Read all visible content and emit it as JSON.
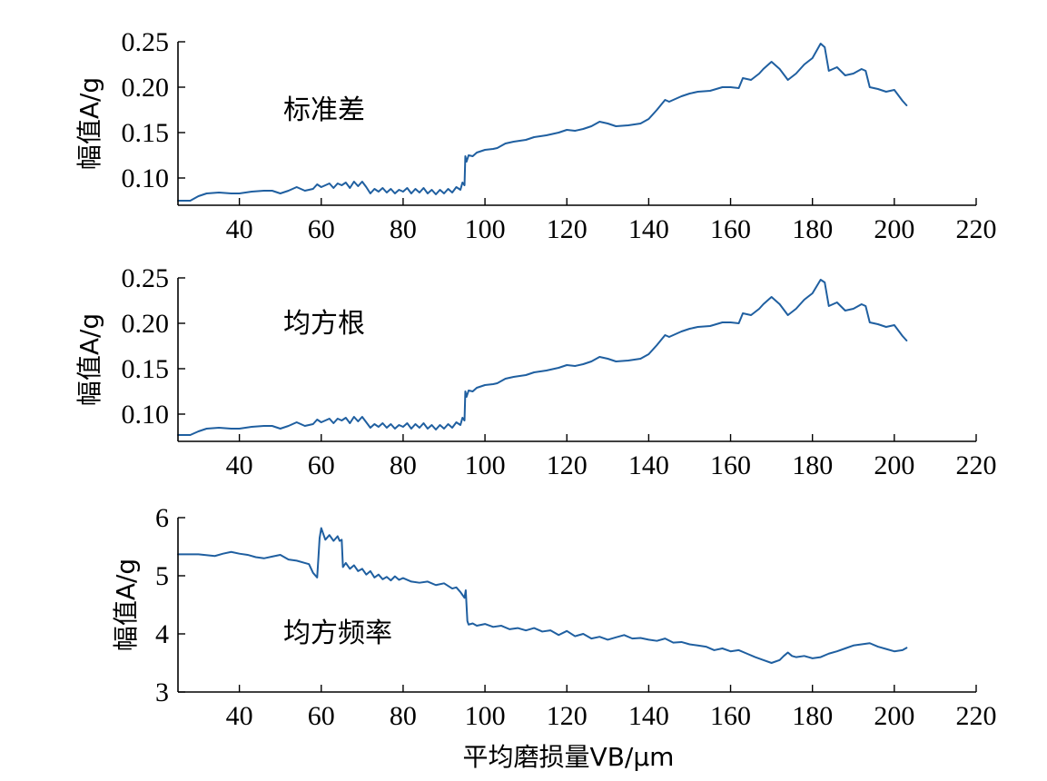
{
  "style": {
    "line_color": "#1f5fa0"
  },
  "chart_data": [
    {
      "type": "line",
      "title": "",
      "ylabel": "幅值A/g",
      "xlabel": "",
      "annotation": "标准差",
      "xlim": [
        25,
        220
      ],
      "ylim": [
        0.07,
        0.25
      ],
      "xticks": [
        "40",
        "60",
        "80",
        "100",
        "120",
        "140",
        "160",
        "180",
        "200",
        "220"
      ],
      "yticks": [
        "0.10",
        "0.15",
        "0.20",
        "0.25"
      ],
      "series": [
        {
          "x": [
            25,
            28,
            30,
            32,
            35,
            38,
            40,
            43,
            46,
            48,
            50,
            52,
            54,
            56,
            58,
            59,
            60,
            62,
            63,
            64,
            65,
            66,
            67,
            68,
            69,
            70,
            71,
            72,
            73,
            74,
            75,
            76,
            77,
            78,
            79,
            80,
            81,
            82,
            83,
            84,
            85,
            86,
            87,
            88,
            89,
            90,
            91,
            92,
            93,
            94,
            94.5,
            95,
            95.2,
            95.5,
            96,
            97,
            98,
            100,
            102,
            103,
            105,
            107,
            110,
            112,
            115,
            118,
            120,
            122,
            124,
            126,
            128,
            130,
            132,
            135,
            138,
            140,
            142,
            144,
            145,
            148,
            150,
            152,
            155,
            158,
            160,
            162,
            163,
            165,
            167,
            168,
            170,
            172,
            174,
            176,
            178,
            180,
            182,
            183,
            184,
            186,
            188,
            190,
            192,
            193,
            194,
            196,
            198,
            200,
            202,
            203
          ],
          "y": [
            0.075,
            0.075,
            0.08,
            0.083,
            0.084,
            0.083,
            0.083,
            0.085,
            0.086,
            0.086,
            0.083,
            0.086,
            0.09,
            0.086,
            0.088,
            0.093,
            0.09,
            0.094,
            0.089,
            0.094,
            0.092,
            0.095,
            0.089,
            0.096,
            0.091,
            0.096,
            0.09,
            0.083,
            0.088,
            0.085,
            0.089,
            0.084,
            0.088,
            0.083,
            0.087,
            0.085,
            0.089,
            0.083,
            0.088,
            0.084,
            0.089,
            0.083,
            0.087,
            0.082,
            0.087,
            0.083,
            0.088,
            0.084,
            0.09,
            0.087,
            0.095,
            0.092,
            0.124,
            0.118,
            0.125,
            0.124,
            0.128,
            0.131,
            0.132,
            0.133,
            0.138,
            0.14,
            0.142,
            0.145,
            0.147,
            0.15,
            0.153,
            0.152,
            0.154,
            0.157,
            0.162,
            0.16,
            0.157,
            0.158,
            0.16,
            0.165,
            0.175,
            0.186,
            0.184,
            0.19,
            0.193,
            0.195,
            0.196,
            0.2,
            0.2,
            0.199,
            0.21,
            0.208,
            0.215,
            0.22,
            0.228,
            0.22,
            0.208,
            0.215,
            0.225,
            0.232,
            0.248,
            0.244,
            0.218,
            0.222,
            0.213,
            0.215,
            0.22,
            0.218,
            0.2,
            0.198,
            0.195,
            0.197,
            0.185,
            0.18
          ]
        }
      ]
    },
    {
      "type": "line",
      "title": "",
      "ylabel": "幅值A/g",
      "xlabel": "",
      "annotation": "均方根",
      "xlim": [
        25,
        220
      ],
      "ylim": [
        0.07,
        0.25
      ],
      "xticks": [
        "40",
        "60",
        "80",
        "100",
        "120",
        "140",
        "160",
        "180",
        "200",
        "220"
      ],
      "yticks": [
        "0.10",
        "0.15",
        "0.20",
        "0.25"
      ],
      "series": [
        {
          "x": [
            25,
            28,
            30,
            32,
            35,
            38,
            40,
            43,
            46,
            48,
            50,
            52,
            54,
            56,
            58,
            59,
            60,
            62,
            63,
            64,
            65,
            66,
            67,
            68,
            69,
            70,
            71,
            72,
            73,
            74,
            75,
            76,
            77,
            78,
            79,
            80,
            81,
            82,
            83,
            84,
            85,
            86,
            87,
            88,
            89,
            90,
            91,
            92,
            93,
            94,
            94.5,
            95,
            95.2,
            95.5,
            96,
            97,
            98,
            100,
            102,
            103,
            105,
            107,
            110,
            112,
            115,
            118,
            120,
            122,
            124,
            126,
            128,
            130,
            132,
            135,
            138,
            140,
            142,
            144,
            145,
            148,
            150,
            152,
            155,
            158,
            160,
            162,
            163,
            165,
            167,
            168,
            170,
            172,
            174,
            176,
            178,
            180,
            182,
            183,
            184,
            186,
            188,
            190,
            192,
            193,
            194,
            196,
            198,
            200,
            202,
            203
          ],
          "y": [
            0.077,
            0.077,
            0.081,
            0.084,
            0.085,
            0.084,
            0.084,
            0.086,
            0.087,
            0.087,
            0.084,
            0.087,
            0.091,
            0.087,
            0.089,
            0.094,
            0.091,
            0.095,
            0.09,
            0.095,
            0.093,
            0.096,
            0.09,
            0.097,
            0.092,
            0.097,
            0.091,
            0.085,
            0.089,
            0.086,
            0.09,
            0.085,
            0.089,
            0.084,
            0.088,
            0.086,
            0.09,
            0.084,
            0.089,
            0.085,
            0.09,
            0.084,
            0.088,
            0.083,
            0.088,
            0.084,
            0.089,
            0.085,
            0.091,
            0.088,
            0.096,
            0.093,
            0.125,
            0.119,
            0.126,
            0.125,
            0.129,
            0.132,
            0.133,
            0.134,
            0.139,
            0.141,
            0.143,
            0.146,
            0.148,
            0.151,
            0.154,
            0.153,
            0.155,
            0.158,
            0.163,
            0.161,
            0.158,
            0.159,
            0.161,
            0.166,
            0.176,
            0.187,
            0.185,
            0.191,
            0.194,
            0.196,
            0.197,
            0.201,
            0.201,
            0.2,
            0.211,
            0.209,
            0.216,
            0.221,
            0.229,
            0.221,
            0.209,
            0.216,
            0.226,
            0.233,
            0.248,
            0.245,
            0.219,
            0.223,
            0.214,
            0.216,
            0.221,
            0.219,
            0.201,
            0.199,
            0.196,
            0.198,
            0.186,
            0.181
          ]
        }
      ]
    },
    {
      "type": "line",
      "title": "",
      "ylabel": "幅值A/g",
      "xlabel": "平均磨损量VB/μm",
      "annotation": "均方频率",
      "xlim": [
        25,
        220
      ],
      "ylim": [
        3,
        6
      ],
      "xticks": [
        "40",
        "60",
        "80",
        "100",
        "120",
        "140",
        "160",
        "180",
        "200",
        "220"
      ],
      "yticks": [
        "3",
        "4",
        "5",
        "6"
      ],
      "series": [
        {
          "x": [
            25,
            30,
            34,
            36,
            38,
            40,
            42,
            44,
            46,
            48,
            50,
            52,
            54,
            56,
            57,
            58,
            59,
            59.3,
            59.6,
            60,
            61,
            62,
            63,
            64,
            64.5,
            65,
            65.3,
            66,
            67,
            68,
            69,
            70,
            71,
            72,
            73,
            74,
            75,
            76,
            77,
            78,
            79,
            80,
            82,
            84,
            86,
            88,
            90,
            92,
            93,
            94,
            95,
            95.3,
            95.7,
            96,
            97,
            98,
            100,
            102,
            104,
            106,
            108,
            110,
            112,
            114,
            116,
            118,
            120,
            122,
            124,
            126,
            128,
            130,
            132,
            134,
            136,
            138,
            140,
            142,
            144,
            146,
            148,
            150,
            152,
            154,
            156,
            158,
            160,
            162,
            164,
            166,
            168,
            170,
            172,
            173,
            174,
            175,
            176,
            178,
            180,
            182,
            184,
            186,
            188,
            190,
            192,
            194,
            196,
            198,
            200,
            202,
            203
          ],
          "y": [
            5.37,
            5.37,
            5.34,
            5.38,
            5.41,
            5.38,
            5.36,
            5.32,
            5.3,
            5.33,
            5.36,
            5.28,
            5.26,
            5.22,
            5.2,
            5.05,
            4.97,
            5.3,
            5.65,
            5.82,
            5.62,
            5.7,
            5.6,
            5.68,
            5.6,
            5.62,
            5.15,
            5.22,
            5.12,
            5.18,
            5.08,
            5.12,
            5.02,
            5.08,
            4.97,
            5.02,
            4.94,
            4.98,
            4.92,
            4.99,
            4.93,
            4.96,
            4.9,
            4.88,
            4.9,
            4.84,
            4.87,
            4.78,
            4.8,
            4.72,
            4.62,
            4.75,
            4.22,
            4.16,
            4.18,
            4.14,
            4.17,
            4.12,
            4.14,
            4.08,
            4.1,
            4.06,
            4.1,
            4.04,
            4.06,
            3.98,
            4.05,
            3.96,
            4.0,
            3.92,
            3.95,
            3.9,
            3.94,
            3.98,
            3.92,
            3.93,
            3.9,
            3.88,
            3.92,
            3.85,
            3.86,
            3.82,
            3.8,
            3.78,
            3.72,
            3.75,
            3.7,
            3.72,
            3.66,
            3.6,
            3.55,
            3.5,
            3.55,
            3.62,
            3.68,
            3.62,
            3.6,
            3.62,
            3.58,
            3.6,
            3.66,
            3.7,
            3.75,
            3.8,
            3.82,
            3.84,
            3.78,
            3.74,
            3.7,
            3.72,
            3.76
          ]
        }
      ]
    }
  ]
}
